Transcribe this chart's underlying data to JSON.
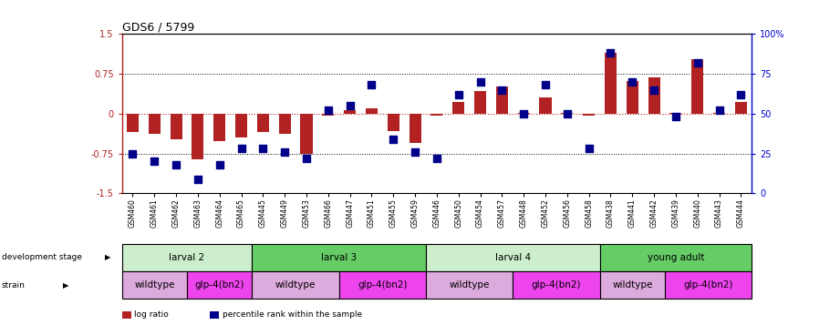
{
  "title": "GDS6 / 5799",
  "samples": [
    "GSM460",
    "GSM461",
    "GSM462",
    "GSM463",
    "GSM464",
    "GSM465",
    "GSM445",
    "GSM449",
    "GSM453",
    "GSM466",
    "GSM447",
    "GSM451",
    "GSM455",
    "GSM459",
    "GSM446",
    "GSM450",
    "GSM454",
    "GSM457",
    "GSM448",
    "GSM452",
    "GSM456",
    "GSM458",
    "GSM438",
    "GSM441",
    "GSM442",
    "GSM439",
    "GSM440",
    "GSM443",
    "GSM444"
  ],
  "log_ratio": [
    -0.35,
    -0.38,
    -0.48,
    -0.85,
    -0.52,
    -0.45,
    -0.35,
    -0.38,
    -0.75,
    -0.04,
    0.07,
    0.1,
    -0.32,
    -0.55,
    -0.04,
    0.22,
    0.42,
    0.52,
    0.02,
    0.3,
    0.02,
    -0.04,
    1.15,
    0.62,
    0.68,
    0.02,
    1.02,
    0.02,
    0.22
  ],
  "percentile": [
    25,
    20,
    18,
    9,
    18,
    28,
    28,
    26,
    22,
    52,
    55,
    68,
    34,
    26,
    22,
    62,
    70,
    65,
    50,
    68,
    50,
    28,
    88,
    70,
    65,
    48,
    82,
    52,
    62
  ],
  "ylim_left": [
    -1.5,
    1.5
  ],
  "ylim_right": [
    0,
    100
  ],
  "bar_color": "#B22222",
  "dot_color": "#00008B",
  "bar_width": 0.55,
  "dot_size": 40,
  "development_stages": [
    {
      "label": "larval 2",
      "start": 0,
      "end": 5,
      "color": "#CCEECC"
    },
    {
      "label": "larval 3",
      "start": 6,
      "end": 13,
      "color": "#66CC66"
    },
    {
      "label": "larval 4",
      "start": 14,
      "end": 21,
      "color": "#CCEECC"
    },
    {
      "label": "young adult",
      "start": 22,
      "end": 28,
      "color": "#66CC66"
    }
  ],
  "strains": [
    {
      "label": "wildtype",
      "start": 0,
      "end": 2,
      "color": "#DDAADD"
    },
    {
      "label": "glp-4(bn2)",
      "start": 3,
      "end": 5,
      "color": "#EE44EE"
    },
    {
      "label": "wildtype",
      "start": 6,
      "end": 9,
      "color": "#DDAADD"
    },
    {
      "label": "glp-4(bn2)",
      "start": 10,
      "end": 13,
      "color": "#EE44EE"
    },
    {
      "label": "wildtype",
      "start": 14,
      "end": 17,
      "color": "#DDAADD"
    },
    {
      "label": "glp-4(bn2)",
      "start": 18,
      "end": 21,
      "color": "#EE44EE"
    },
    {
      "label": "wildtype",
      "start": 22,
      "end": 24,
      "color": "#DDAADD"
    },
    {
      "label": "glp-4(bn2)",
      "start": 25,
      "end": 28,
      "color": "#EE44EE"
    }
  ],
  "legend_items": [
    {
      "label": "log ratio",
      "color": "#B22222"
    },
    {
      "label": "percentile rank within the sample",
      "color": "#00008B"
    }
  ],
  "left_axis_color": "#B22222",
  "right_axis_color": "#0000CD",
  "left_yticks": [
    -1.5,
    -0.75,
    0,
    0.75,
    1.5
  ],
  "left_yticklabels": [
    "-1.5",
    "-0.75",
    "0",
    "0.75",
    "1.5"
  ],
  "right_yticks": [
    0,
    25,
    50,
    75,
    100
  ],
  "right_yticklabels": [
    "0",
    "25",
    "50",
    "75",
    "100%"
  ]
}
